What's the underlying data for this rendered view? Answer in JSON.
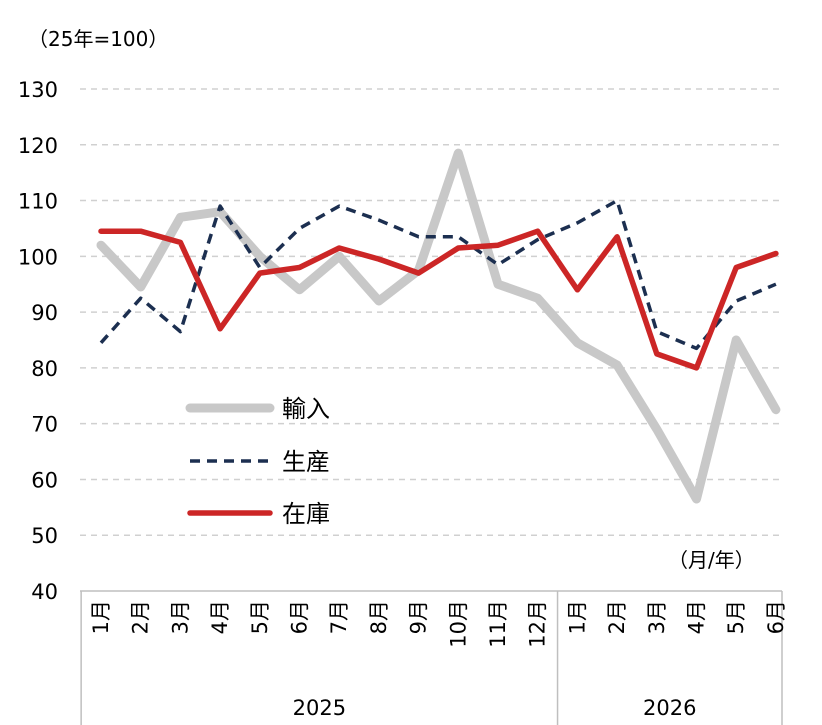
{
  "chart_data": {
    "type": "line",
    "unit_label": "（25年=100）",
    "x_unit_label": "（月/年）",
    "categories": [
      "1月",
      "2月",
      "3月",
      "4月",
      "5月",
      "6月",
      "7月",
      "8月",
      "9月",
      "10月",
      "11月",
      "12月",
      "1月",
      "2月",
      "3月",
      "4月",
      "5月",
      "6月"
    ],
    "year_groups": [
      {
        "label": "2025",
        "count": 12
      },
      {
        "label": "2026",
        "count": 6
      }
    ],
    "ylim": [
      40,
      130
    ],
    "yticks": [
      40,
      50,
      60,
      70,
      80,
      90,
      100,
      110,
      120,
      130
    ],
    "grid": true,
    "legend_position": "lower-left",
    "series": [
      {
        "name": "輸入",
        "color": "#c8c8c8",
        "style": "solid-thick",
        "values": [
          102,
          94.5,
          107,
          108,
          100,
          94,
          100,
          92,
          97.5,
          118.5,
          95,
          92.5,
          84.5,
          80.5,
          69,
          56.5,
          85,
          72.5
        ]
      },
      {
        "name": "生産",
        "color": "#1c2f50",
        "style": "dashed",
        "values": [
          84.5,
          92.5,
          86.5,
          109,
          98,
          105,
          109,
          106.5,
          103.5,
          103.5,
          98.5,
          103,
          106,
          110,
          86.5,
          83.5,
          92,
          95
        ]
      },
      {
        "name": "在庫",
        "color": "#cc2626",
        "style": "solid",
        "values": [
          104.5,
          104.5,
          102.5,
          87,
          97,
          98,
          101.5,
          99.5,
          97,
          101.5,
          102,
          104.5,
          94,
          103.5,
          82.5,
          80,
          98,
          100.5
        ]
      }
    ]
  }
}
